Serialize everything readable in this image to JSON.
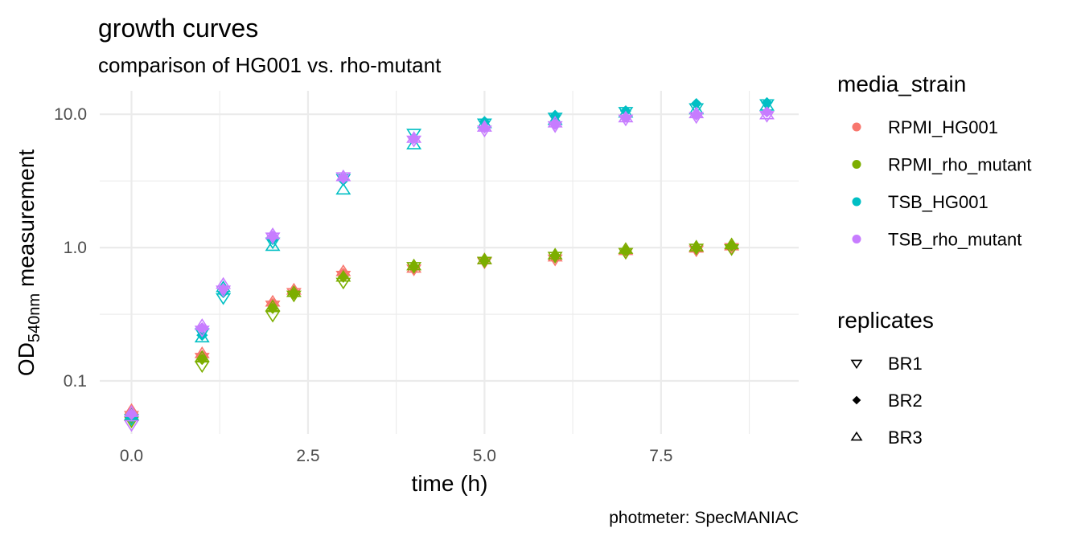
{
  "chart_data": {
    "type": "scatter",
    "title": "growth curves",
    "subtitle": "comparison of HG001 vs. rho-mutant",
    "xlabel": "time (h)",
    "ylabel": {
      "main": "OD",
      "subscript": "540nm",
      "suffix": " measurement"
    },
    "caption": "photmeter: SpecMANIAC",
    "y_scale": "log10",
    "xlim": [
      -0.45,
      9.45
    ],
    "ylim": [
      0.04,
      15
    ],
    "x_ticks": [
      0,
      2.5,
      5,
      7.5
    ],
    "x_tick_labels": [
      "0.0",
      "2.5",
      "5.0",
      "7.5"
    ],
    "y_ticks": [
      0.1,
      1,
      10
    ],
    "y_tick_labels": [
      "0.1",
      "1.0",
      "10.0"
    ],
    "grid": true,
    "legend_position": "right",
    "legends": {
      "color": {
        "title": "media_strain",
        "entries": [
          {
            "name": "RPMI_HG001",
            "color": "#F8766D"
          },
          {
            "name": "RPMI_rho_mutant",
            "color": "#7CAE00"
          },
          {
            "name": "TSB_HG001",
            "color": "#00BFC4"
          },
          {
            "name": "TSB_rho_mutant",
            "color": "#C77CFF"
          }
        ]
      },
      "shape": {
        "title": "replicates",
        "entries": [
          {
            "name": "BR1",
            "shape": "triangle-down-open"
          },
          {
            "name": "BR2",
            "shape": "diamond-filled"
          },
          {
            "name": "BR3",
            "shape": "triangle-up-open"
          }
        ]
      }
    },
    "series": [
      {
        "name": "RPMI_HG001",
        "replicate": "BR1",
        "x": [
          0,
          1,
          2,
          2.3,
          3,
          4,
          5,
          6,
          7,
          8,
          8.5
        ],
        "y": [
          0.055,
          0.15,
          0.37,
          0.46,
          0.62,
          0.69,
          0.78,
          0.82,
          0.92,
          0.96,
          1.0
        ]
      },
      {
        "name": "RPMI_HG001",
        "replicate": "BR2",
        "x": [
          0,
          1,
          2,
          2.3,
          3,
          4,
          5,
          6,
          7,
          8,
          8.5
        ],
        "y": [
          0.058,
          0.155,
          0.38,
          0.47,
          0.64,
          0.7,
          0.8,
          0.84,
          0.94,
          0.98,
          1.02
        ]
      },
      {
        "name": "RPMI_HG001",
        "replicate": "BR3",
        "x": [
          0,
          1,
          2,
          2.3,
          3,
          4,
          5,
          6,
          7,
          8,
          8.5
        ],
        "y": [
          0.06,
          0.16,
          0.39,
          0.48,
          0.66,
          0.7,
          0.81,
          0.85,
          0.95,
          0.99,
          1.03
        ]
      },
      {
        "name": "RPMI_rho_mutant",
        "replicate": "BR1",
        "x": [
          0,
          1,
          2,
          2.3,
          3,
          4,
          5,
          6,
          7,
          8,
          8.5
        ],
        "y": [
          0.05,
          0.13,
          0.31,
          0.44,
          0.55,
          0.72,
          0.79,
          0.86,
          0.92,
          0.99,
          0.98
        ]
      },
      {
        "name": "RPMI_rho_mutant",
        "replicate": "BR2",
        "x": [
          0,
          1,
          2,
          2.3,
          3,
          4,
          5,
          6,
          7,
          8,
          8.5
        ],
        "y": [
          0.052,
          0.145,
          0.35,
          0.45,
          0.6,
          0.72,
          0.8,
          0.87,
          0.95,
          1.0,
          1.03
        ]
      },
      {
        "name": "RPMI_rho_mutant",
        "replicate": "BR3",
        "x": [
          0,
          1,
          2,
          2.3,
          3,
          4,
          5,
          6,
          7,
          8,
          8.5
        ],
        "y": [
          0.054,
          0.15,
          0.36,
          0.46,
          0.6,
          0.73,
          0.81,
          0.88,
          0.97,
          1.01,
          1.05
        ]
      },
      {
        "name": "TSB_HG001",
        "replicate": "BR1",
        "x": [
          0,
          1,
          1.3,
          2,
          3,
          4,
          5,
          6,
          7,
          8,
          9
        ],
        "y": [
          0.052,
          0.23,
          0.42,
          1.1,
          3.3,
          7.2,
          8.6,
          9.5,
          10.5,
          11.2,
          12.0
        ]
      },
      {
        "name": "TSB_HG001",
        "replicate": "BR2",
        "x": [
          0,
          1,
          1.3,
          2,
          3,
          4,
          5,
          6,
          7,
          8,
          9
        ],
        "y": [
          0.054,
          0.22,
          0.46,
          1.15,
          3.2,
          6.6,
          8.8,
          9.8,
          10.6,
          12.0,
          12.2
        ]
      },
      {
        "name": "TSB_HG001",
        "replicate": "BR3",
        "x": [
          0,
          1,
          1.3,
          2,
          3,
          4,
          5,
          6,
          7,
          8,
          9
        ],
        "y": [
          0.055,
          0.21,
          0.5,
          1.02,
          2.7,
          5.9,
          8.5,
          9.0,
          10.2,
          10.8,
          11.5
        ]
      },
      {
        "name": "TSB_rho_mutant",
        "replicate": "BR1",
        "x": [
          0,
          1,
          1.3,
          2,
          3,
          4,
          5,
          6,
          7,
          8,
          9
        ],
        "y": [
          0.047,
          0.24,
          0.48,
          1.2,
          3.4,
          6.4,
          7.6,
          8.2,
          9.2,
          9.6,
          9.8
        ]
      },
      {
        "name": "TSB_rho_mutant",
        "replicate": "BR2",
        "x": [
          0,
          1,
          1.3,
          2,
          3,
          4,
          5,
          6,
          7,
          8,
          9
        ],
        "y": [
          0.056,
          0.25,
          0.49,
          1.22,
          3.3,
          6.6,
          7.9,
          8.4,
          9.5,
          9.9,
          10.4
        ]
      },
      {
        "name": "TSB_rho_mutant",
        "replicate": "BR3",
        "x": [
          0,
          1,
          1.3,
          2,
          3,
          4,
          5,
          6,
          7,
          8,
          9
        ],
        "y": [
          0.058,
          0.26,
          0.53,
          1.25,
          3.4,
          6.6,
          8.0,
          8.6,
          9.4,
          10.1,
          9.9
        ]
      }
    ]
  }
}
